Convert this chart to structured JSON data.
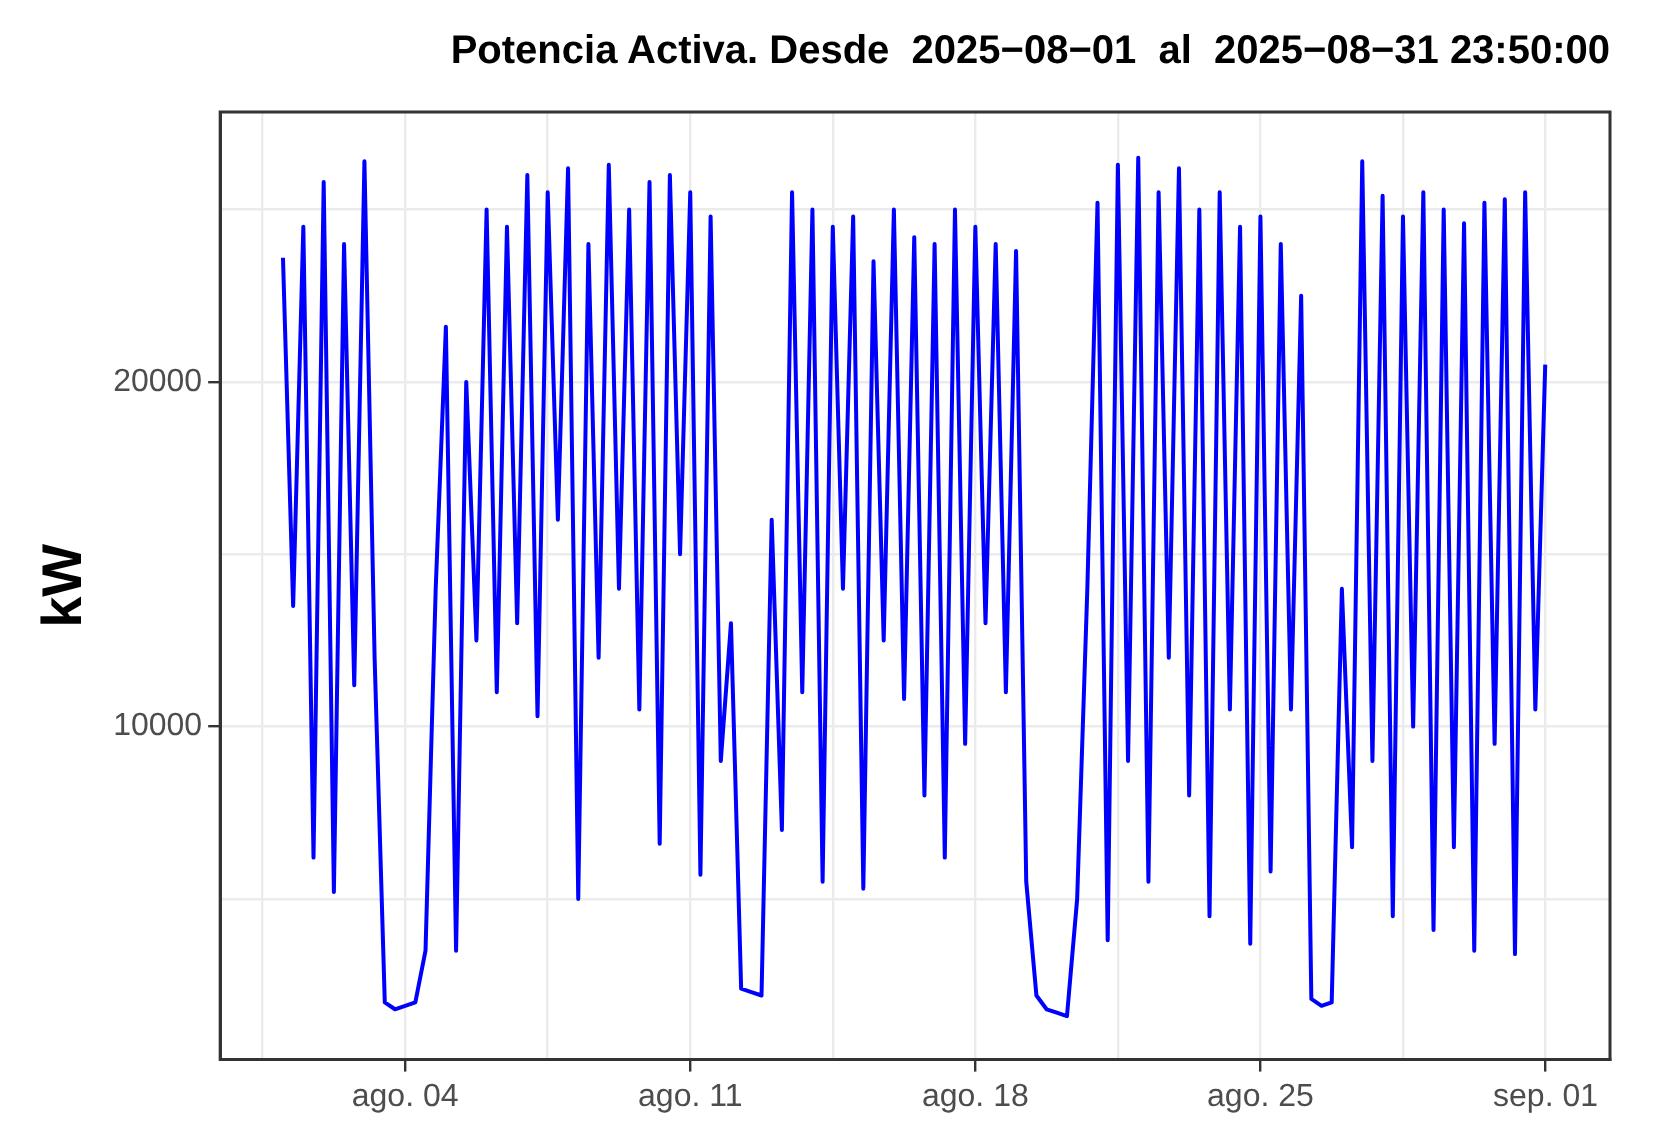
{
  "chart_data": {
    "type": "line",
    "title": "Potencia Activa. Desde  2025−08−01  al  2025−08−31 23:50:00",
    "ylabel": "kW",
    "x": [
      "2025-08-01T00:00",
      "2025-08-01T06:00",
      "2025-08-01T12:00",
      "2025-08-01T18:00",
      "2025-08-02T00:00",
      "2025-08-02T06:00",
      "2025-08-02T12:00",
      "2025-08-02T18:00",
      "2025-08-03T00:00",
      "2025-08-03T06:00",
      "2025-08-03T12:00",
      "2025-08-03T18:00",
      "2025-08-04T00:00",
      "2025-08-04T06:00",
      "2025-08-04T12:00",
      "2025-08-04T18:00",
      "2025-08-05T00:00",
      "2025-08-05T06:00",
      "2025-08-05T12:00",
      "2025-08-05T18:00",
      "2025-08-06T00:00",
      "2025-08-06T06:00",
      "2025-08-06T12:00",
      "2025-08-06T18:00",
      "2025-08-07T00:00",
      "2025-08-07T06:00",
      "2025-08-07T12:00",
      "2025-08-07T18:00",
      "2025-08-08T00:00",
      "2025-08-08T06:00",
      "2025-08-08T12:00",
      "2025-08-08T18:00",
      "2025-08-09T00:00",
      "2025-08-09T06:00",
      "2025-08-09T12:00",
      "2025-08-09T18:00",
      "2025-08-10T00:00",
      "2025-08-10T06:00",
      "2025-08-10T12:00",
      "2025-08-10T18:00",
      "2025-08-11T00:00",
      "2025-08-11T06:00",
      "2025-08-11T12:00",
      "2025-08-11T18:00",
      "2025-08-12T00:00",
      "2025-08-12T06:00",
      "2025-08-12T12:00",
      "2025-08-12T18:00",
      "2025-08-13T00:00",
      "2025-08-13T06:00",
      "2025-08-13T12:00",
      "2025-08-13T18:00",
      "2025-08-14T00:00",
      "2025-08-14T06:00",
      "2025-08-14T12:00",
      "2025-08-14T18:00",
      "2025-08-15T00:00",
      "2025-08-15T06:00",
      "2025-08-15T12:00",
      "2025-08-15T18:00",
      "2025-08-16T00:00",
      "2025-08-16T06:00",
      "2025-08-16T12:00",
      "2025-08-16T18:00",
      "2025-08-17T00:00",
      "2025-08-17T06:00",
      "2025-08-17T12:00",
      "2025-08-17T18:00",
      "2025-08-18T00:00",
      "2025-08-18T06:00",
      "2025-08-18T12:00",
      "2025-08-18T18:00",
      "2025-08-19T00:00",
      "2025-08-19T06:00",
      "2025-08-19T12:00",
      "2025-08-19T18:00",
      "2025-08-20T00:00",
      "2025-08-20T06:00",
      "2025-08-20T12:00",
      "2025-08-20T18:00",
      "2025-08-21T00:00",
      "2025-08-21T06:00",
      "2025-08-21T12:00",
      "2025-08-21T18:00",
      "2025-08-22T00:00",
      "2025-08-22T06:00",
      "2025-08-22T12:00",
      "2025-08-22T18:00",
      "2025-08-23T00:00",
      "2025-08-23T06:00",
      "2025-08-23T12:00",
      "2025-08-23T18:00",
      "2025-08-24T00:00",
      "2025-08-24T06:00",
      "2025-08-24T12:00",
      "2025-08-24T18:00",
      "2025-08-25T00:00",
      "2025-08-25T06:00",
      "2025-08-25T12:00",
      "2025-08-25T18:00",
      "2025-08-26T00:00",
      "2025-08-26T06:00",
      "2025-08-26T12:00",
      "2025-08-26T18:00",
      "2025-08-27T00:00",
      "2025-08-27T06:00",
      "2025-08-27T12:00",
      "2025-08-27T18:00",
      "2025-08-28T00:00",
      "2025-08-28T06:00",
      "2025-08-28T12:00",
      "2025-08-28T18:00",
      "2025-08-29T00:00",
      "2025-08-29T06:00",
      "2025-08-29T12:00",
      "2025-08-29T18:00",
      "2025-08-30T00:00",
      "2025-08-30T06:00",
      "2025-08-30T12:00",
      "2025-08-30T18:00",
      "2025-08-31T00:00",
      "2025-08-31T06:00",
      "2025-08-31T12:00",
      "2025-08-31T18:00",
      "2025-08-31T23:50"
    ],
    "series": [
      {
        "color": "#0000ff",
        "values": [
          23600,
          13500,
          24500,
          6200,
          25800,
          5200,
          24000,
          11200,
          26400,
          12000,
          2000,
          1800,
          1900,
          2000,
          3500,
          14000,
          21600,
          3500,
          20000,
          12500,
          25000,
          11000,
          24500,
          13000,
          26000,
          10300,
          25500,
          16000,
          26200,
          5000,
          24000,
          12000,
          26300,
          14000,
          25000,
          10500,
          25800,
          6600,
          26000,
          15000,
          25500,
          5700,
          24800,
          9000,
          13000,
          2400,
          2300,
          2200,
          16000,
          7000,
          25500,
          11000,
          25000,
          5500,
          24500,
          14000,
          24800,
          5300,
          23500,
          12500,
          25000,
          10800,
          24200,
          8000,
          24000,
          6200,
          25000,
          9500,
          24500,
          13000,
          24000,
          11000,
          23800,
          5500,
          2200,
          1800,
          1700,
          1600,
          5000,
          14000,
          25200,
          3800,
          26300,
          9000,
          26500,
          5500,
          25500,
          12000,
          26200,
          8000,
          25000,
          4500,
          25500,
          10500,
          24500,
          3700,
          24800,
          5800,
          24000,
          10500,
          22500,
          2100,
          1900,
          2000,
          14000,
          6500,
          26400,
          9000,
          25400,
          4500,
          24800,
          10000,
          25500,
          4100,
          25000,
          6500,
          24600,
          3500,
          25200,
          9500,
          25300,
          3400,
          25500,
          10500,
          20500
        ]
      }
    ],
    "xlim": [
      "2025-07-30T11:00",
      "2025-09-02T14:00"
    ],
    "xticks": [
      {
        "value": "2025-07-31T12:00",
        "label": null
      },
      {
        "value": "2025-08-04",
        "label": "ago. 04"
      },
      {
        "value": "2025-08-07T12:00",
        "label": null
      },
      {
        "value": "2025-08-11",
        "label": "ago. 11"
      },
      {
        "value": "2025-08-14T12:00",
        "label": null
      },
      {
        "value": "2025-08-18",
        "label": "ago. 18"
      },
      {
        "value": "2025-08-21T12:00",
        "label": null
      },
      {
        "value": "2025-08-25",
        "label": "ago. 25"
      },
      {
        "value": "2025-08-28T12:00",
        "label": null
      },
      {
        "value": "2025-09-01",
        "label": "sep. 01"
      }
    ],
    "ylim": [
      340,
      27830
    ],
    "yticks": [
      {
        "value": 5000,
        "label": null
      },
      {
        "value": 10000,
        "label": "10000"
      },
      {
        "value": 15000,
        "label": null
      },
      {
        "value": 20000,
        "label": "20000"
      },
      {
        "value": 25000,
        "label": null
      }
    ],
    "grid": true,
    "legend": false,
    "marker": "none",
    "line_style": "solid"
  }
}
